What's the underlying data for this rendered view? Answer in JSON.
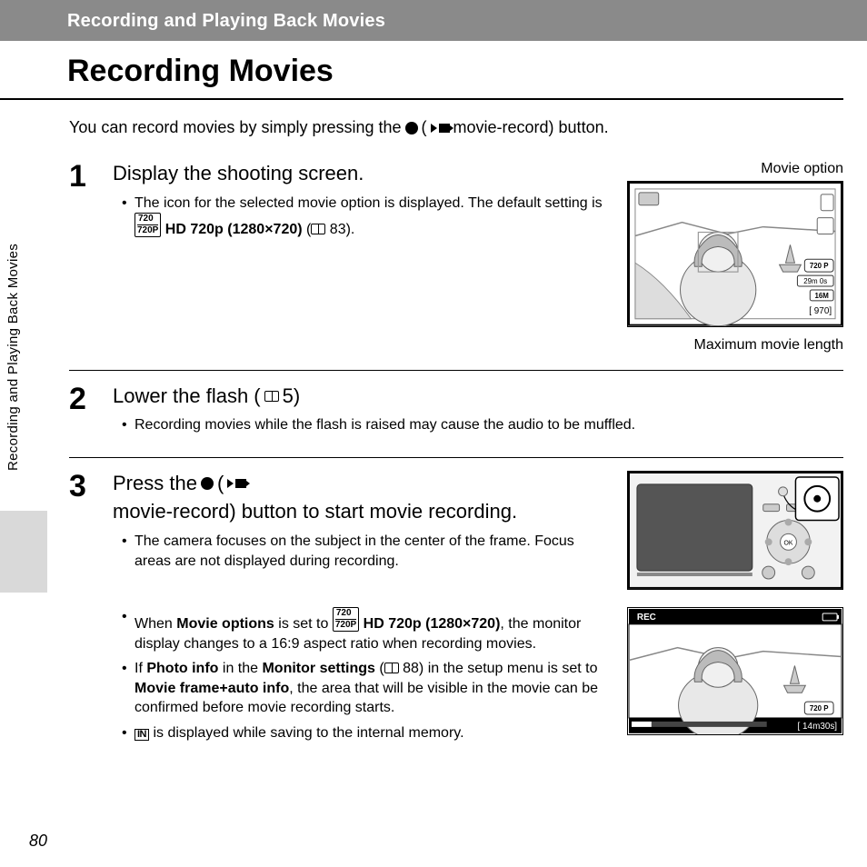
{
  "header": {
    "section_title": "Recording and Playing Back Movies"
  },
  "title": "Recording Movies",
  "side_tab": "Recording and Playing Back Movies",
  "page_number": "80",
  "intro": {
    "before": "You can record movies by simply pressing the",
    "after": "movie-record) button."
  },
  "steps": [
    {
      "num": "1",
      "heading": "Display the shooting screen.",
      "bullets": [
        {
          "parts": [
            {
              "t": "text",
              "v": "The icon for the selected movie option is displayed. The default setting is "
            },
            {
              "t": "icon",
              "v": "720p"
            },
            {
              "t": "bold",
              "v": " HD 720p (1280×720)"
            },
            {
              "t": "text",
              "v": " ("
            },
            {
              "t": "icon",
              "v": "book"
            },
            {
              "t": "text",
              "v": " 83)."
            }
          ]
        }
      ],
      "fig": {
        "label_top": "Movie option",
        "label_bottom": "Maximum movie length",
        "badge_720": "720 P",
        "badge_time": "29m 0s",
        "badge_16m": "16M",
        "badge_count": "[ 970]"
      }
    },
    {
      "num": "2",
      "heading_parts": [
        {
          "t": "text",
          "v": "Lower the flash ("
        },
        {
          "t": "icon",
          "v": "book"
        },
        {
          "t": "text",
          "v": " 5)"
        }
      ],
      "bullets": [
        {
          "parts": [
            {
              "t": "text",
              "v": "Recording movies while the flash is raised may cause the audio to be muffled."
            }
          ]
        }
      ]
    },
    {
      "num": "3",
      "heading_parts": [
        {
          "t": "text",
          "v": "Press the "
        },
        {
          "t": "icon",
          "v": "dot"
        },
        {
          "t": "text",
          "v": " ("
        },
        {
          "t": "icon",
          "v": "rec"
        },
        {
          "t": "text",
          "v": " movie-record) button to start movie recording."
        }
      ],
      "bullets_a": [
        {
          "parts": [
            {
              "t": "text",
              "v": "The camera focuses on the subject in the center of the frame. Focus areas are not displayed during recording."
            }
          ]
        }
      ],
      "bullets_b": [
        {
          "parts": [
            {
              "t": "text",
              "v": "When "
            },
            {
              "t": "bold",
              "v": "Movie options"
            },
            {
              "t": "text",
              "v": " is set to "
            },
            {
              "t": "icon",
              "v": "720p"
            },
            {
              "t": "bold",
              "v": " HD 720p (1280×720)"
            },
            {
              "t": "text",
              "v": ", the monitor display changes to a 16:9 aspect ratio when recording movies."
            }
          ]
        },
        {
          "parts": [
            {
              "t": "text",
              "v": "If "
            },
            {
              "t": "bold",
              "v": "Photo info"
            },
            {
              "t": "text",
              "v": " in the "
            },
            {
              "t": "bold",
              "v": "Monitor settings"
            },
            {
              "t": "text",
              "v": " ("
            },
            {
              "t": "icon",
              "v": "book"
            },
            {
              "t": "text",
              "v": " 88) in the setup menu is set to "
            },
            {
              "t": "bold",
              "v": "Movie frame+auto info"
            },
            {
              "t": "text",
              "v": ", the area that will be visible in the movie can be confirmed before movie recording starts."
            }
          ]
        },
        {
          "parts": [
            {
              "t": "icon",
              "v": "in"
            },
            {
              "t": "text",
              "v": " is displayed while saving to the internal memory."
            }
          ]
        }
      ],
      "fig_camera": {
        "present": true
      },
      "fig_rec": {
        "rec_label": "REC",
        "badge_720": "720 P",
        "badge_time": "[ 14m30s]"
      }
    }
  ]
}
